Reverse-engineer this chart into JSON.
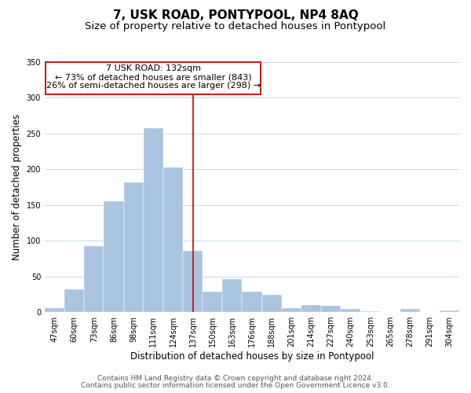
{
  "title": "7, USK ROAD, PONTYPOOL, NP4 8AQ",
  "subtitle": "Size of property relative to detached houses in Pontypool",
  "xlabel": "Distribution of detached houses by size in Pontypool",
  "ylabel": "Number of detached properties",
  "bar_labels": [
    "47sqm",
    "60sqm",
    "73sqm",
    "86sqm",
    "98sqm",
    "111sqm",
    "124sqm",
    "137sqm",
    "150sqm",
    "163sqm",
    "176sqm",
    "188sqm",
    "201sqm",
    "214sqm",
    "227sqm",
    "240sqm",
    "253sqm",
    "265sqm",
    "278sqm",
    "291sqm",
    "304sqm"
  ],
  "bar_values": [
    6,
    32,
    93,
    155,
    182,
    258,
    203,
    86,
    29,
    46,
    29,
    24,
    6,
    10,
    9,
    4,
    1,
    0,
    4,
    0,
    2
  ],
  "bar_color": "#aac4e0",
  "bar_edge_color": "#aac4e0",
  "vline_x_index": 7.0,
  "highlight_label": "7 USK ROAD: 132sqm",
  "annotation_line1": "← 73% of detached houses are smaller (843)",
  "annotation_line2": "26% of semi-detached houses are larger (298) →",
  "box_edge_color": "#cc0000",
  "vline_color": "#cc0000",
  "ylim": [
    0,
    350
  ],
  "yticks": [
    0,
    50,
    100,
    150,
    200,
    250,
    300,
    350
  ],
  "footer1": "Contains HM Land Registry data © Crown copyright and database right 2024.",
  "footer2": "Contains public sector information licensed under the Open Government Licence v3.0.",
  "title_fontsize": 11,
  "subtitle_fontsize": 9.5,
  "label_fontsize": 8.5,
  "tick_fontsize": 7,
  "annotation_fontsize": 8,
  "footer_fontsize": 6.5
}
